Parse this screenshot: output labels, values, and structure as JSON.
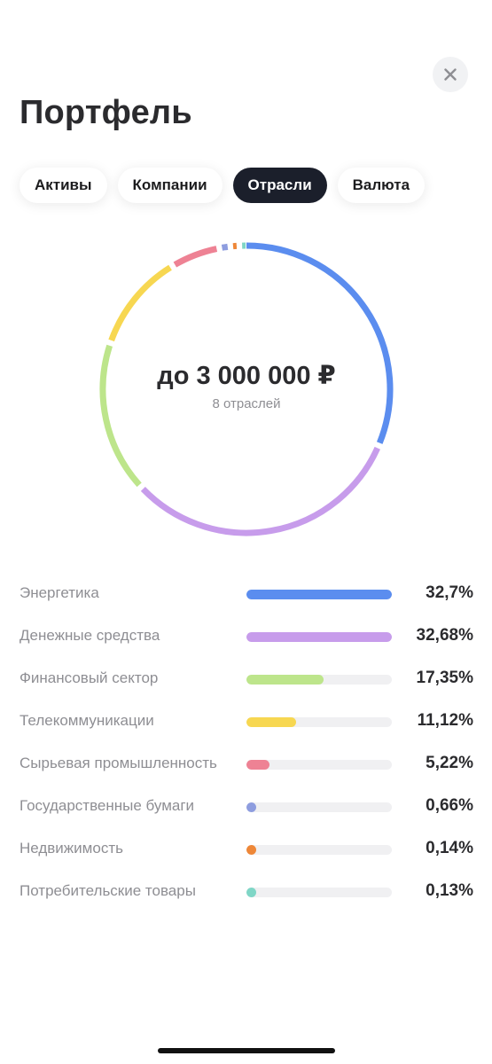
{
  "header": {
    "title": "Портфель",
    "close_icon": "close-icon"
  },
  "tabs": [
    {
      "label": "Активы",
      "active": false
    },
    {
      "label": "Компании",
      "active": false
    },
    {
      "label": "Отрасли",
      "active": true
    },
    {
      "label": "Валюта",
      "active": false
    }
  ],
  "donut": {
    "amount": "до 3 000 000 ₽",
    "subtitle": "8 отраслей"
  },
  "sectors": [
    {
      "name": "Энергетика",
      "percent_label": "32,7%",
      "value": 32.7,
      "color": "#5b8def"
    },
    {
      "name": "Денежные средства",
      "percent_label": "32,68%",
      "value": 32.68,
      "color": "#c79ceb"
    },
    {
      "name": "Финансовый сектор",
      "percent_label": "17,35%",
      "value": 17.35,
      "color": "#bde58b"
    },
    {
      "name": "Телекоммуникации",
      "percent_label": "11,12%",
      "value": 11.12,
      "color": "#f7d751"
    },
    {
      "name": "Сырьевая промышленность",
      "percent_label": "5,22%",
      "value": 5.22,
      "color": "#ee8294"
    },
    {
      "name": "Государственные бумаги",
      "percent_label": "0,66%",
      "value": 0.66,
      "color": "#8e9ddf"
    },
    {
      "name": "Недвижимость",
      "percent_label": "0,14%",
      "value": 0.14,
      "color": "#ee8738"
    },
    {
      "name": "Потребительские товары",
      "percent_label": "0,13%",
      "value": 0.13,
      "color": "#7fd6c6"
    }
  ]
}
